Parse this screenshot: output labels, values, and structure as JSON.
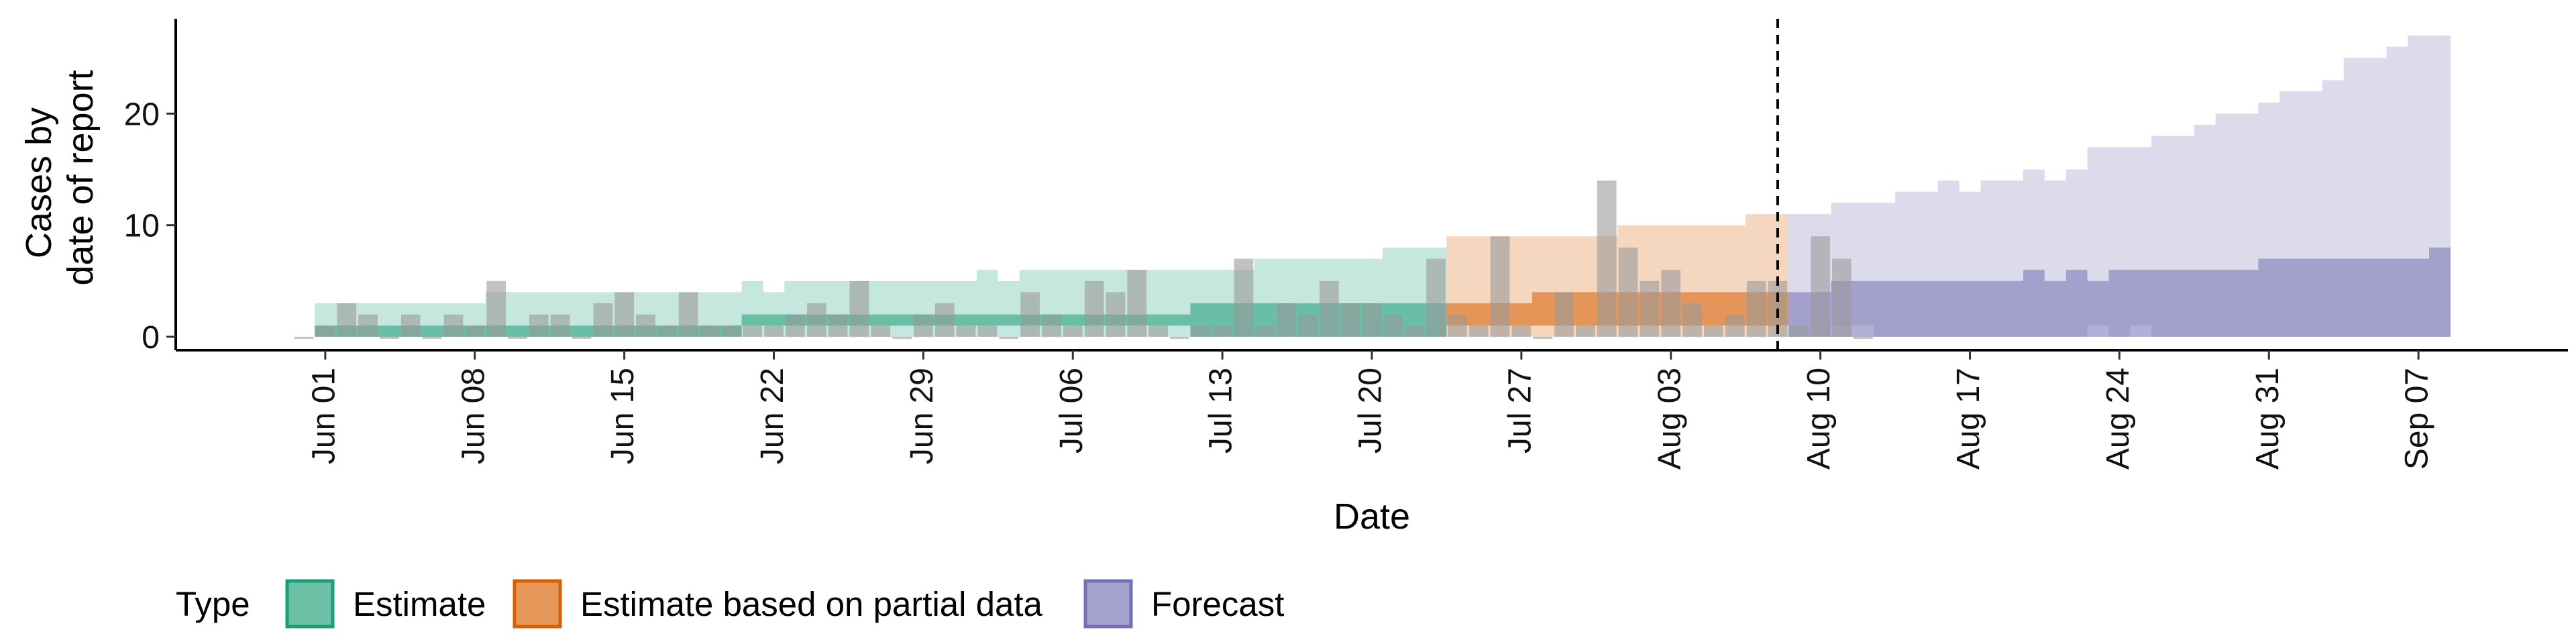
{
  "chart_data": {
    "type": "area",
    "xlabel": "Date",
    "ylabel": [
      "Cases by",
      "date of report"
    ],
    "x_range": [
      "2020-05-25",
      "2020-09-14"
    ],
    "ylim": [
      -1.2,
      28.5
    ],
    "y_ticks": [
      0,
      10,
      20
    ],
    "x_ticks": [
      {
        "date": "2020-06-01",
        "label": "Jun 01"
      },
      {
        "date": "2020-06-08",
        "label": "Jun 08"
      },
      {
        "date": "2020-06-15",
        "label": "Jun 15"
      },
      {
        "date": "2020-06-22",
        "label": "Jun 22"
      },
      {
        "date": "2020-06-29",
        "label": "Jun 29"
      },
      {
        "date": "2020-07-06",
        "label": "Jul 06"
      },
      {
        "date": "2020-07-13",
        "label": "Jul 13"
      },
      {
        "date": "2020-07-20",
        "label": "Jul 20"
      },
      {
        "date": "2020-07-27",
        "label": "Jul 27"
      },
      {
        "date": "2020-08-03",
        "label": "Aug 03"
      },
      {
        "date": "2020-08-10",
        "label": "Aug 10"
      },
      {
        "date": "2020-08-17",
        "label": "Aug 17"
      },
      {
        "date": "2020-08-24",
        "label": "Aug 24"
      },
      {
        "date": "2020-08-31",
        "label": "Aug 31"
      },
      {
        "date": "2020-09-07",
        "label": "Sep 07"
      }
    ],
    "forecast_date": "2020-08-08",
    "grid": false,
    "legend": {
      "title": "Type",
      "position": "bottom",
      "items": [
        {
          "label": "Estimate",
          "fill": "#1B9E77",
          "stroke": "#1B9E77"
        },
        {
          "label": "Estimate based on partial data",
          "fill": "#D95F02",
          "stroke": "#D95F02"
        },
        {
          "label": "Forecast",
          "fill": "#7570B3",
          "stroke": "#7570B3"
        }
      ]
    },
    "bar_color": "#999999",
    "observed_cases": {
      "start_date": "2020-05-31",
      "values": [
        0,
        1,
        3,
        2,
        0,
        2,
        0,
        2,
        1,
        5,
        0,
        2,
        2,
        0,
        3,
        4,
        2,
        1,
        4,
        1,
        1,
        1,
        1,
        2,
        3,
        2,
        5,
        1,
        0,
        2,
        3,
        1,
        1,
        0,
        4,
        2,
        1,
        5,
        4,
        6,
        1,
        0,
        1,
        1,
        7,
        1,
        3,
        2,
        5,
        3,
        3,
        2,
        1,
        7,
        2,
        1,
        9,
        1,
        0,
        4,
        1,
        14,
        8,
        5,
        6,
        3,
        1,
        2,
        5,
        5,
        1,
        9,
        7,
        0
      ]
    },
    "series": [
      {
        "name": "Estimate",
        "start_date": "2020-06-01",
        "outer_lower": [
          0,
          0,
          0,
          0,
          0,
          0,
          0,
          0,
          0,
          0,
          0,
          0,
          0,
          0,
          0,
          0,
          0,
          0,
          0,
          0,
          0,
          0,
          0,
          0,
          0,
          0,
          0,
          0,
          0,
          0,
          0,
          0,
          0,
          0,
          0,
          0,
          0,
          0,
          0,
          0,
          0,
          0,
          0,
          0,
          0,
          0,
          0,
          0,
          0,
          0,
          0,
          0,
          0
        ],
        "outer_upper": [
          3,
          3,
          3,
          3,
          3,
          3,
          3,
          3,
          4,
          4,
          4,
          4,
          4,
          4,
          4,
          4,
          4,
          4,
          4,
          4,
          5,
          4,
          5,
          5,
          5,
          5,
          5,
          5,
          5,
          5,
          5,
          6,
          5,
          6,
          6,
          6,
          6,
          6,
          6,
          6,
          6,
          6,
          6,
          6,
          7,
          7,
          7,
          7,
          7,
          7,
          8,
          8,
          8
        ],
        "inner_lower": [
          0,
          0,
          0,
          0,
          0,
          0,
          0,
          0,
          0,
          0,
          0,
          0,
          0,
          0,
          0,
          0,
          0,
          0,
          0,
          0,
          1,
          1,
          1,
          1,
          1,
          1,
          1,
          1,
          1,
          1,
          1,
          1,
          1,
          1,
          1,
          1,
          1,
          1,
          1,
          1,
          1,
          0,
          0,
          0,
          0,
          0,
          0,
          0,
          0,
          0,
          0,
          0,
          0
        ],
        "inner_upper": [
          1,
          1,
          1,
          1,
          1,
          1,
          1,
          1,
          1,
          1,
          1,
          1,
          1,
          1,
          1,
          1,
          1,
          1,
          1,
          1,
          2,
          2,
          2,
          2,
          2,
          2,
          2,
          2,
          2,
          2,
          2,
          2,
          2,
          2,
          2,
          2,
          2,
          2,
          2,
          2,
          2,
          3,
          3,
          3,
          3,
          3,
          3,
          3,
          3,
          3,
          3,
          3,
          3
        ]
      },
      {
        "name": "Estimate based on partial data",
        "start_date": "2020-07-24",
        "outer_lower": [
          0,
          0,
          0,
          0,
          0,
          0,
          0,
          0,
          0,
          0,
          0,
          0,
          0,
          0,
          0,
          0
        ],
        "outer_upper": [
          9,
          9,
          9,
          9,
          9,
          9,
          9,
          9,
          10,
          10,
          10,
          10,
          10,
          10,
          11,
          11
        ],
        "inner_lower": [
          1,
          1,
          1,
          1,
          1,
          1,
          1,
          1,
          1,
          1,
          1,
          1,
          1,
          1,
          1,
          1
        ],
        "inner_upper": [
          3,
          3,
          3,
          3,
          4,
          4,
          4,
          4,
          4,
          4,
          4,
          4,
          4,
          4,
          4,
          4
        ]
      },
      {
        "name": "Forecast",
        "start_date": "2020-08-09",
        "outer_lower": [
          0,
          0,
          1,
          1,
          0,
          0,
          0,
          0,
          0,
          0,
          0,
          0,
          0,
          0,
          1,
          0,
          1,
          0,
          0,
          0,
          0,
          0,
          0,
          0,
          0,
          0,
          0,
          0,
          0,
          0,
          0
        ],
        "outer_upper": [
          11,
          11,
          12,
          12,
          12,
          13,
          13,
          14,
          13,
          14,
          14,
          15,
          14,
          15,
          17,
          17,
          17,
          18,
          18,
          19,
          20,
          20,
          21,
          22,
          22,
          23,
          25,
          25,
          26,
          27,
          27
        ],
        "inner_lower": [
          0,
          0,
          0,
          0,
          0,
          0,
          0,
          0,
          0,
          0,
          0,
          0,
          0,
          0,
          0,
          0,
          0,
          0,
          0,
          0,
          0,
          0,
          0,
          0,
          0,
          0,
          0,
          0,
          0,
          0,
          0
        ],
        "inner_upper": [
          4,
          4,
          5,
          5,
          5,
          5,
          5,
          5,
          5,
          5,
          5,
          6,
          5,
          6,
          5,
          6,
          6,
          6,
          6,
          6,
          6,
          6,
          7,
          7,
          7,
          7,
          7,
          7,
          7,
          7,
          8
        ]
      }
    ]
  }
}
